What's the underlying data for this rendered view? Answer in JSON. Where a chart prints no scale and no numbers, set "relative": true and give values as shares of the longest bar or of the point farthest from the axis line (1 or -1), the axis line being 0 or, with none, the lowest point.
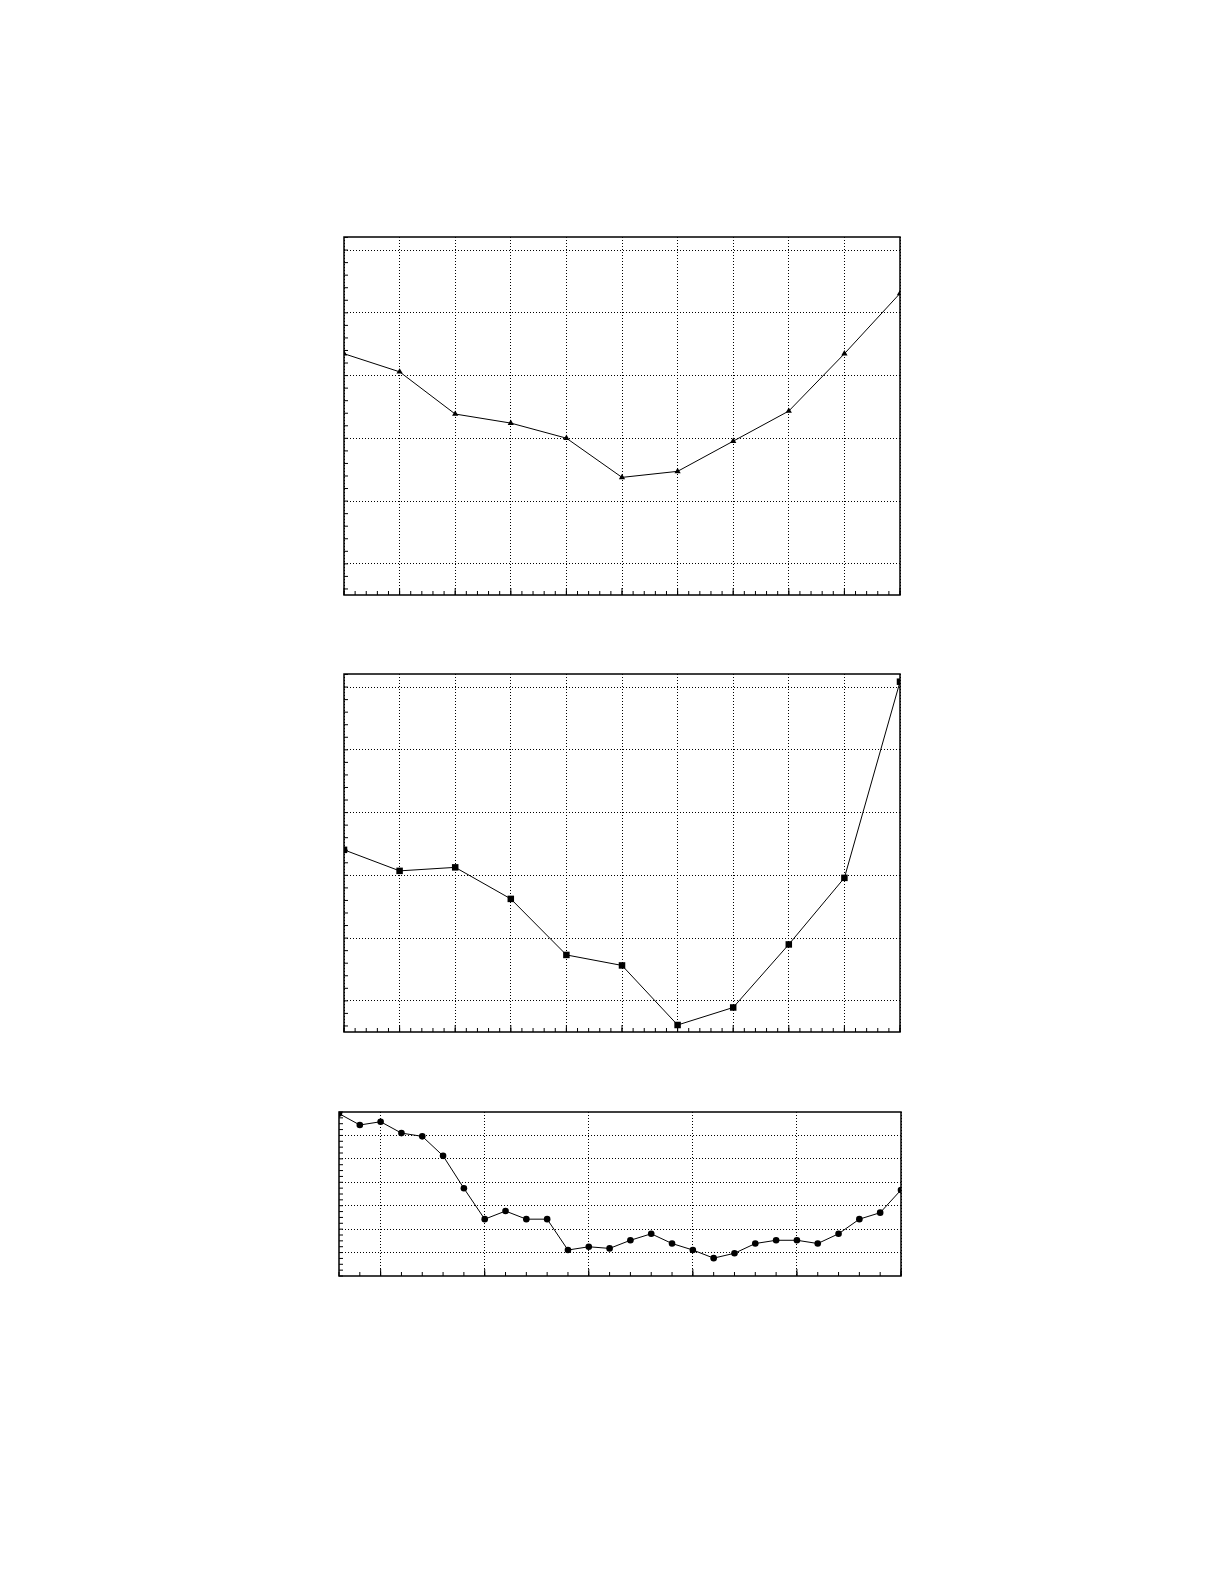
{
  "chart_data": [
    {
      "type": "line",
      "relative": true,
      "categories": [
        null,
        null,
        null,
        null,
        null,
        null,
        null,
        null,
        null,
        null,
        null
      ],
      "values": [
        0.8,
        0.74,
        0.6,
        0.57,
        0.52,
        0.39,
        0.41,
        0.51,
        0.61,
        0.8,
        1
      ],
      "color": "#000000",
      "marker": "triangle",
      "grid": true,
      "tick_labels": false
    },
    {
      "type": "line",
      "relative": true,
      "categories": [
        null,
        null,
        null,
        null,
        null,
        null,
        null,
        null,
        null,
        null,
        null
      ],
      "values": [
        0.52,
        0.46,
        0.47,
        0.38,
        0.22,
        0.19,
        0.02,
        0.07,
        0.25,
        0.44,
        1
      ],
      "color": "#000000",
      "marker": "square",
      "grid": true,
      "tick_labels": false
    },
    {
      "type": "line",
      "relative": true,
      "categories": [
        null,
        null,
        null,
        null,
        null,
        null,
        null,
        null,
        null,
        null,
        null,
        null,
        null,
        null,
        null,
        null,
        null,
        null,
        null,
        null,
        null,
        null,
        null,
        null,
        null,
        null,
        null,
        null
      ],
      "values": [
        1,
        0.93,
        0.95,
        0.88,
        0.86,
        0.74,
        0.54,
        0.35,
        0.4,
        0.35,
        0.35,
        0.16,
        0.18,
        0.17,
        0.22,
        0.26,
        0.2,
        0.16,
        0.11,
        0.14,
        0.2,
        0.22,
        0.22,
        0.2,
        0.26,
        0.35,
        0.39,
        0.53
      ],
      "color": "#000000",
      "marker": "circle",
      "grid": true,
      "tick_labels": false
    }
  ]
}
